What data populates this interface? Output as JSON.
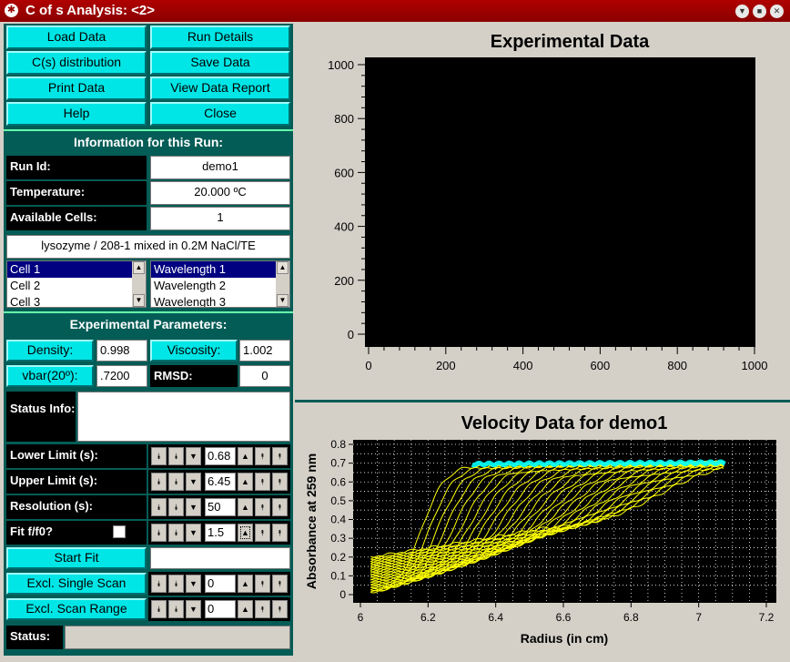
{
  "window": {
    "title": "C of s Analysis: <2>"
  },
  "buttons": {
    "load_data": "Load Data",
    "run_details": "Run Details",
    "cs_distribution": "C(s) distribution",
    "save_data": "Save Data",
    "print_data": "Print Data",
    "view_data_report": "View Data Report",
    "help": "Help",
    "close": "Close",
    "density": "Density:",
    "viscosity": "Viscosity:",
    "vbar": "vbar(20º):",
    "start_fit": "Start Fit",
    "excl_single_scan": "Excl. Single Scan",
    "excl_scan_range": "Excl. Scan Range"
  },
  "run_info": {
    "header": "Information for this Run:",
    "run_id_label": "Run Id:",
    "run_id": "demo1",
    "temperature_label": "Temperature:",
    "temperature": "20.000 ºC",
    "cells_label": "Available Cells:",
    "cells": "1",
    "description": "lysozyme / 208-1 mixed in 0.2M NaCl/TE",
    "cell_list": [
      "Cell 1",
      "Cell 2",
      "Cell 3"
    ],
    "wavelength_list": [
      "Wavelength 1",
      "Wavelength 2",
      "Wavelength 3"
    ]
  },
  "params": {
    "header": "Experimental Parameters:",
    "density": "0.998",
    "viscosity": "1.002",
    "vbar": ".7200",
    "rmsd_label": "RMSD:",
    "rmsd": "0",
    "status_info_label": "Status Info:",
    "lower_limit_label": "Lower Limit (s):",
    "lower_limit": "0.68",
    "upper_limit_label": "Upper Limit (s):",
    "upper_limit": "6.45",
    "resolution_label": "Resolution (s):",
    "resolution": "50",
    "fit_ff0_label": "Fit f/f0?",
    "fit_ff0": "1.5",
    "excl_single_scan": "0",
    "excl_scan_range": "0",
    "status_label": "Status:"
  },
  "colors": {
    "panel": "#045c56",
    "button": "#00e6e6",
    "titlebar": "#a00000",
    "scan_yellow": "#ffff00",
    "scan_cyan": "#00ffff"
  },
  "chart_data": [
    {
      "type": "line",
      "title": "Experimental Data",
      "xlabel": "",
      "ylabel": "",
      "xlim": [
        0,
        1000
      ],
      "ylim": [
        0,
        1000
      ],
      "xticks": [
        0,
        200,
        400,
        600,
        800,
        1000
      ],
      "yticks": [
        0,
        200,
        400,
        600,
        800,
        1000
      ],
      "grid": false,
      "series": []
    },
    {
      "type": "line",
      "title": "Velocity Data for demo1",
      "xlabel": "Radius (in cm)",
      "ylabel": "Absorbance at 259 nm",
      "xlim": [
        6,
        7.2
      ],
      "ylim": [
        0,
        0.8
      ],
      "xticks": [
        6,
        6.2,
        6.4,
        6.6,
        6.8,
        7,
        7.2
      ],
      "yticks": [
        0,
        0.1,
        0.2,
        0.3,
        0.4,
        0.5,
        0.6,
        0.7,
        0.8
      ],
      "grid": true,
      "scan_count": 30,
      "meniscus_radius": 6.03,
      "bottom_radius": 7.08,
      "plateau_absorbance": 0.69,
      "final_scan_baseline": 0.33,
      "boundary_start_radius": 6.18,
      "boundary_end_radius": 6.88
    }
  ]
}
